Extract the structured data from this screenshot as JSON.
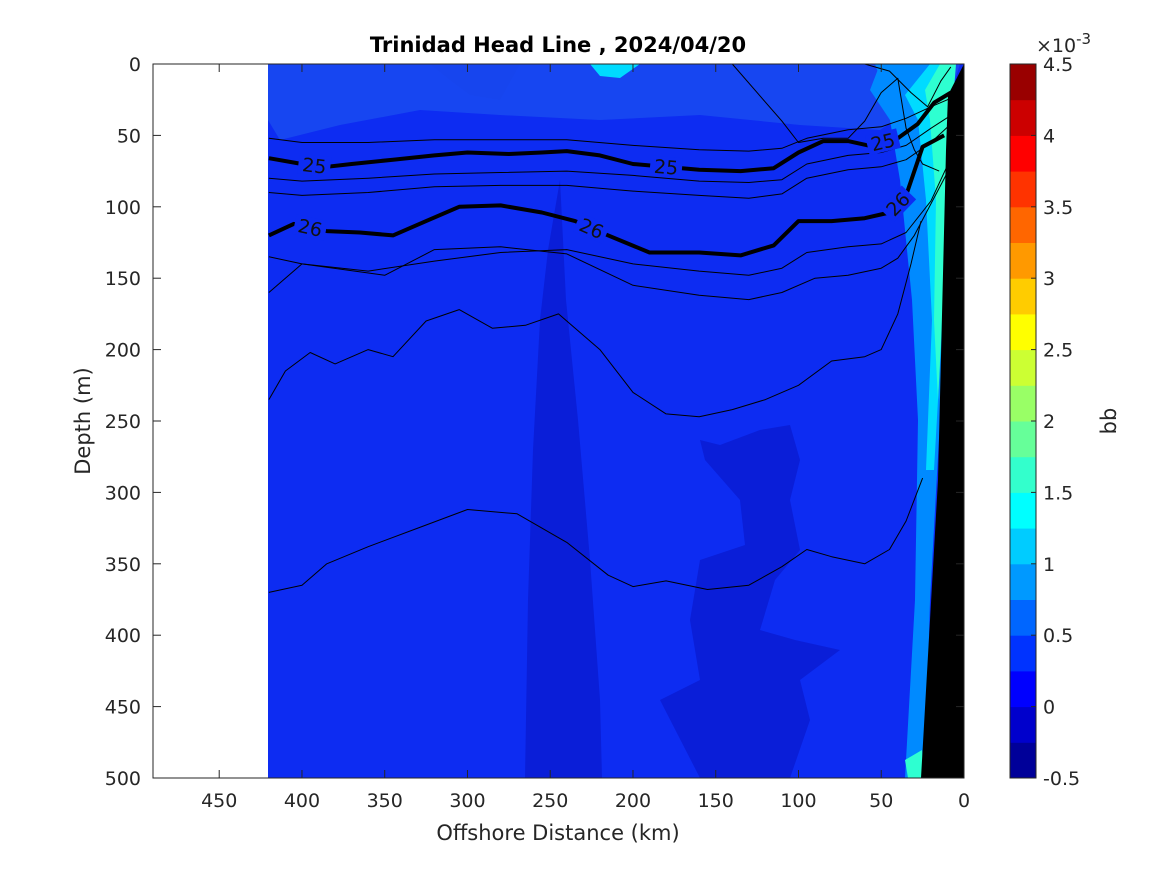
{
  "chart_data": {
    "type": "heatmap",
    "title": "Trinidad Head Line , 2024/04/20",
    "xlabel": "Offshore Distance (km)",
    "ylabel": "Depth (m)",
    "xlim": [
      490,
      0
    ],
    "ylim": [
      0,
      500
    ],
    "x_reversed": true,
    "y_reversed": true,
    "x_ticks": [
      "450",
      "400",
      "350",
      "300",
      "250",
      "200",
      "150",
      "100",
      "50",
      "0"
    ],
    "y_ticks": [
      "0",
      "50",
      "100",
      "150",
      "200",
      "250",
      "300",
      "350",
      "400",
      "450",
      "500"
    ],
    "data_extent_x": [
      420,
      0
    ],
    "colorbar": {
      "label": "bb",
      "exponent_label": "×10",
      "exponent_sup": "-3",
      "min": -0.5,
      "max": 4.5,
      "step": 0.25,
      "tick_labels": [
        "-0.5",
        "0",
        "0.5",
        "1",
        "1.5",
        "2",
        "2.5",
        "3",
        "3.5",
        "4",
        "4.5"
      ],
      "colormap": "jet"
    },
    "background_value": 0.1,
    "background_color": "#0d2cf2",
    "features": {
      "low_bands": [
        {
          "value": -0.1,
          "color": "#0a1ed8",
          "label": "column near 250 km"
        },
        {
          "value": -0.1,
          "color": "#0a1ed8",
          "label": "deep patch 160-90 km"
        }
      ],
      "near_surface_bb": 0.55,
      "nearshore_bb": [
        0.8,
        1.2,
        1.6
      ]
    },
    "contours": [
      {
        "level": "25",
        "bold": true,
        "x": [
          420,
          400,
          385,
          370,
          345,
          320,
          300,
          275,
          255,
          240,
          220,
          200,
          160,
          135,
          115,
          100,
          85,
          70,
          58,
          40,
          28,
          18,
          8
        ],
        "y": [
          66,
          70,
          72,
          70,
          67,
          64,
          62,
          63,
          62,
          61,
          64,
          70,
          74,
          75,
          73,
          62,
          54,
          54,
          57,
          52,
          42,
          27,
          20
        ]
      },
      {
        "level": "26",
        "bold": true,
        "x": [
          420,
          405,
          385,
          365,
          345,
          325,
          305,
          280,
          255,
          235,
          215,
          190,
          160,
          135,
          115,
          100,
          80,
          60,
          45,
          35,
          25,
          12
        ],
        "y": [
          120,
          112,
          117,
          118,
          120,
          110,
          100,
          99,
          104,
          110,
          120,
          132,
          132,
          134,
          127,
          110,
          110,
          108,
          104,
          92,
          58,
          50
        ]
      },
      {
        "level": "",
        "bold": false,
        "x": [
          420,
          400,
          360,
          320,
          280,
          240,
          200,
          160,
          130,
          110,
          95,
          70,
          50,
          35,
          20,
          8
        ],
        "y": [
          52,
          55,
          55,
          53,
          53,
          53,
          57,
          60,
          61,
          59,
          52,
          46,
          44,
          38,
          30,
          24
        ]
      },
      {
        "level": "",
        "bold": false,
        "x": [
          420,
          400,
          360,
          320,
          280,
          240,
          200,
          160,
          130,
          110,
          95,
          70,
          50,
          35,
          20,
          8
        ],
        "y": [
          80,
          82,
          80,
          77,
          76,
          75,
          78,
          82,
          83,
          81,
          70,
          64,
          62,
          57,
          45,
          36
        ]
      },
      {
        "level": "",
        "bold": false,
        "x": [
          420,
          400,
          360,
          320,
          280,
          240,
          200,
          160,
          130,
          110,
          95,
          70,
          50,
          35,
          20,
          8
        ],
        "y": [
          90,
          92,
          90,
          86,
          85,
          85,
          89,
          92,
          94,
          91,
          80,
          74,
          72,
          67,
          55,
          42
        ]
      },
      {
        "level": "",
        "bold": false,
        "x": [
          420,
          400,
          360,
          320,
          280,
          240,
          200,
          160,
          130,
          110,
          95,
          70,
          50,
          35,
          20,
          8
        ],
        "y": [
          135,
          140,
          145,
          138,
          132,
          130,
          140,
          145,
          148,
          143,
          132,
          128,
          126,
          118,
          96,
          66
        ]
      },
      {
        "level": "",
        "bold": false,
        "x": [
          420,
          400,
          350,
          320,
          280,
          240,
          200,
          160,
          130,
          110,
          90,
          70,
          50,
          40,
          30,
          20,
          10
        ],
        "y": [
          160,
          140,
          148,
          130,
          128,
          133,
          155,
          162,
          165,
          160,
          150,
          148,
          143,
          136,
          120,
          98,
          76
        ]
      },
      {
        "level": "",
        "bold": false,
        "x": [
          420,
          410,
          395,
          380,
          360,
          345,
          325,
          305,
          285,
          265,
          245,
          220,
          200,
          180,
          160,
          140,
          120,
          100,
          80,
          60,
          50,
          40,
          32,
          26
        ],
        "y": [
          235,
          215,
          202,
          210,
          200,
          205,
          180,
          172,
          185,
          183,
          175,
          200,
          230,
          245,
          247,
          242,
          235,
          225,
          208,
          205,
          200,
          175,
          140,
          110
        ]
      },
      {
        "level": "",
        "bold": false,
        "x": [
          420,
          400,
          385,
          360,
          330,
          300,
          270,
          240,
          215,
          200,
          180,
          155,
          130,
          110,
          95,
          80,
          60,
          45,
          35,
          25
        ],
        "y": [
          370,
          365,
          350,
          338,
          325,
          312,
          315,
          335,
          358,
          366,
          362,
          368,
          365,
          352,
          340,
          345,
          350,
          340,
          320,
          290
        ]
      },
      {
        "level": "",
        "bold": false,
        "x": [
          140,
          125,
          110,
          100,
          85,
          70,
          60,
          50,
          40,
          35,
          30,
          25,
          15
        ],
        "y": [
          0,
          20,
          40,
          55,
          52,
          52,
          40,
          20,
          10,
          45,
          60,
          70,
          75
        ]
      },
      {
        "level": "",
        "bold": false,
        "x": [
          60,
          45,
          32,
          22,
          14,
          8
        ],
        "y": [
          0,
          5,
          20,
          30,
          12,
          2
        ]
      }
    ]
  }
}
